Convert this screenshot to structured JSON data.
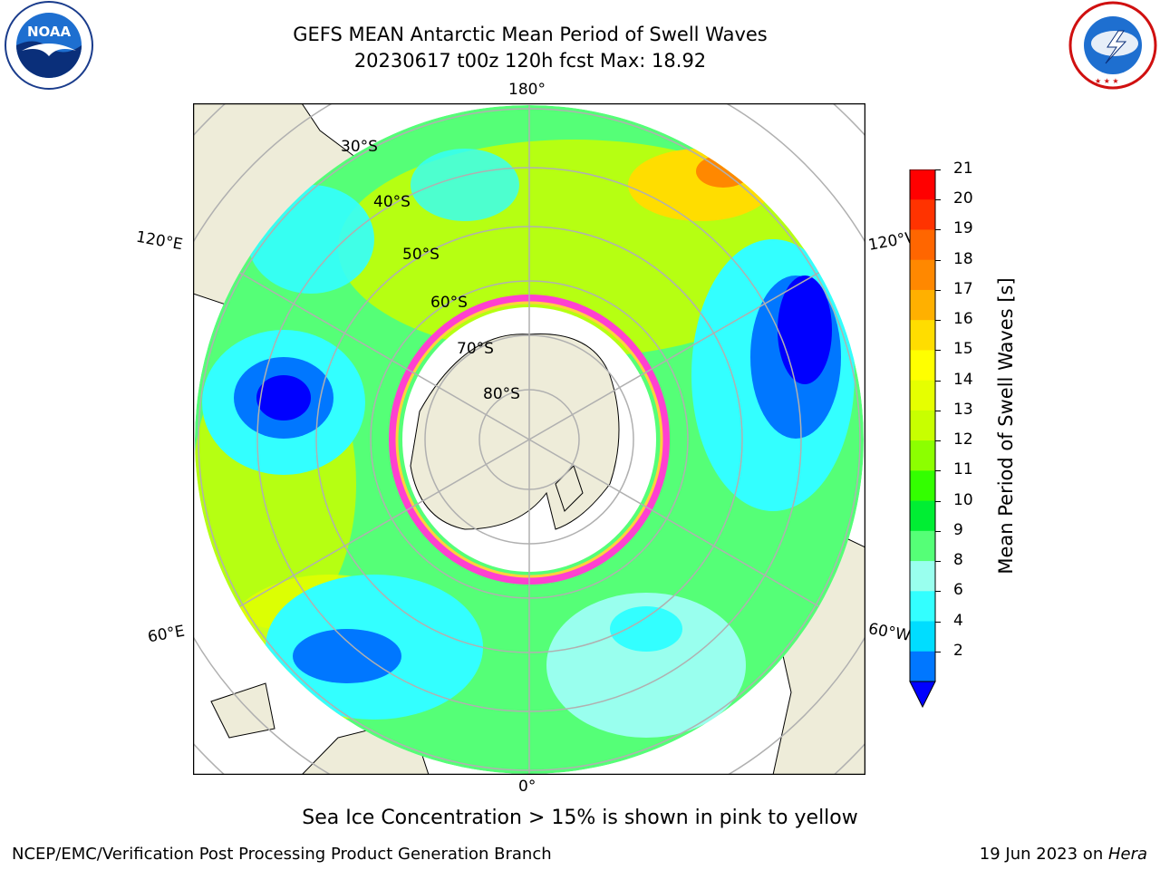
{
  "header": {
    "title_line1": "GEFS MEAN Antarctic Mean Period of Swell Waves",
    "title_line2": "20230617 t00z 120h fcst   Max: 18.92",
    "left_logo_text": "NOAA",
    "left_logo_ring_text": "NATIONAL OCEANIC AND ATMOSPHERIC ADMINISTRATION · U.S. DEPARTMENT OF COMMERCE",
    "right_logo_ring_text": "NATIONAL WEATHER SERVICE"
  },
  "map": {
    "longitude_labels": {
      "top": "180°",
      "bottom": "0°",
      "left_upper": "120°E",
      "left_lower": "60°E",
      "right_upper": "120°W",
      "right_lower": "60°W"
    },
    "latitude_labels": [
      "30°S",
      "40°S",
      "50°S",
      "60°S",
      "70°S",
      "80°S"
    ],
    "colors": {
      "land": "#eeecd9",
      "ice_edge_pink": "#ff40d0",
      "ice_edge_yellow": "#ffd23c",
      "grid": "#b0b0b0"
    }
  },
  "colorbar": {
    "label": "Mean Period of Swell Waves [s]",
    "ticks": [
      "21",
      "20",
      "19",
      "18",
      "17",
      "16",
      "15",
      "14",
      "13",
      "12",
      "11",
      "10",
      "9",
      "8",
      "6",
      "4",
      "2"
    ],
    "colors_top_to_bottom": [
      "#ff0000",
      "#ff3300",
      "#ff6600",
      "#ff8800",
      "#ffb000",
      "#ffdd00",
      "#ffff00",
      "#e6ff00",
      "#c8ff00",
      "#8cff00",
      "#33ff00",
      "#00ee33",
      "#55ff77",
      "#99ffee",
      "#33ffff",
      "#00ddff",
      "#0077ff"
    ],
    "under_color": "#0000ff"
  },
  "caption": "Sea Ice Concentration > 15% is shown in pink to yellow",
  "footer": {
    "left": "NCEP/EMC/Verification Post Processing Product Generation Branch",
    "right_prefix": "19 Jun 2023 on ",
    "right_host": "Hera"
  }
}
